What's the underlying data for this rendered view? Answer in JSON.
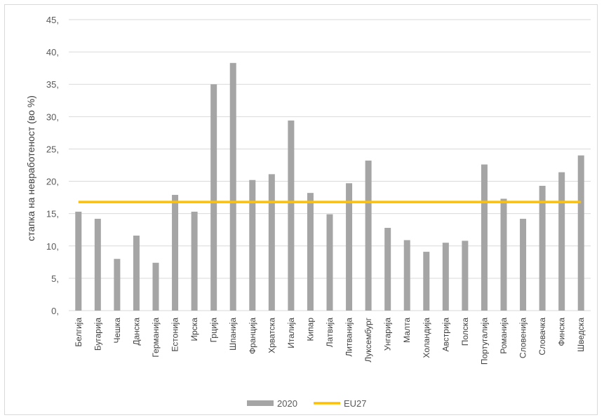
{
  "chart_data": {
    "type": "bar",
    "ylabel": "стапка на невработеност (во %)",
    "ylim": [
      0,
      45
    ],
    "yticks": [
      "0,",
      "5,",
      "10,",
      "15,",
      "20,",
      "25,",
      "30,",
      "35,",
      "40,",
      "45,"
    ],
    "grid": true,
    "legend_position": "bottom",
    "categories": [
      "Белгија",
      "Бугарија",
      "Чешка",
      "Данска",
      "Германија",
      "Естонија",
      "Ирска",
      "Грција",
      "Шпанија",
      "Франција",
      "Хрватска",
      "Италија",
      "Кипар",
      "Латвија",
      "Литванија",
      "Луксембург",
      "Унгарија",
      "Малта",
      "Холандија",
      "Австрија",
      "Полска",
      "Португалија",
      "Романија",
      "Словенија",
      "Словачка",
      "Финска",
      "Шведска"
    ],
    "series": [
      {
        "name": "2020",
        "kind": "bar",
        "color": "#a5a5a5",
        "values": [
          15.3,
          14.2,
          8.0,
          11.6,
          7.4,
          17.9,
          15.3,
          35.0,
          38.3,
          20.2,
          21.1,
          29.4,
          18.2,
          14.9,
          19.7,
          23.2,
          12.8,
          10.9,
          9.1,
          10.5,
          10.8,
          22.6,
          17.3,
          14.2,
          19.3,
          21.4,
          24.0
        ]
      },
      {
        "name": "EU27",
        "kind": "line",
        "color": "#ffc000",
        "value": 16.8
      }
    ]
  }
}
